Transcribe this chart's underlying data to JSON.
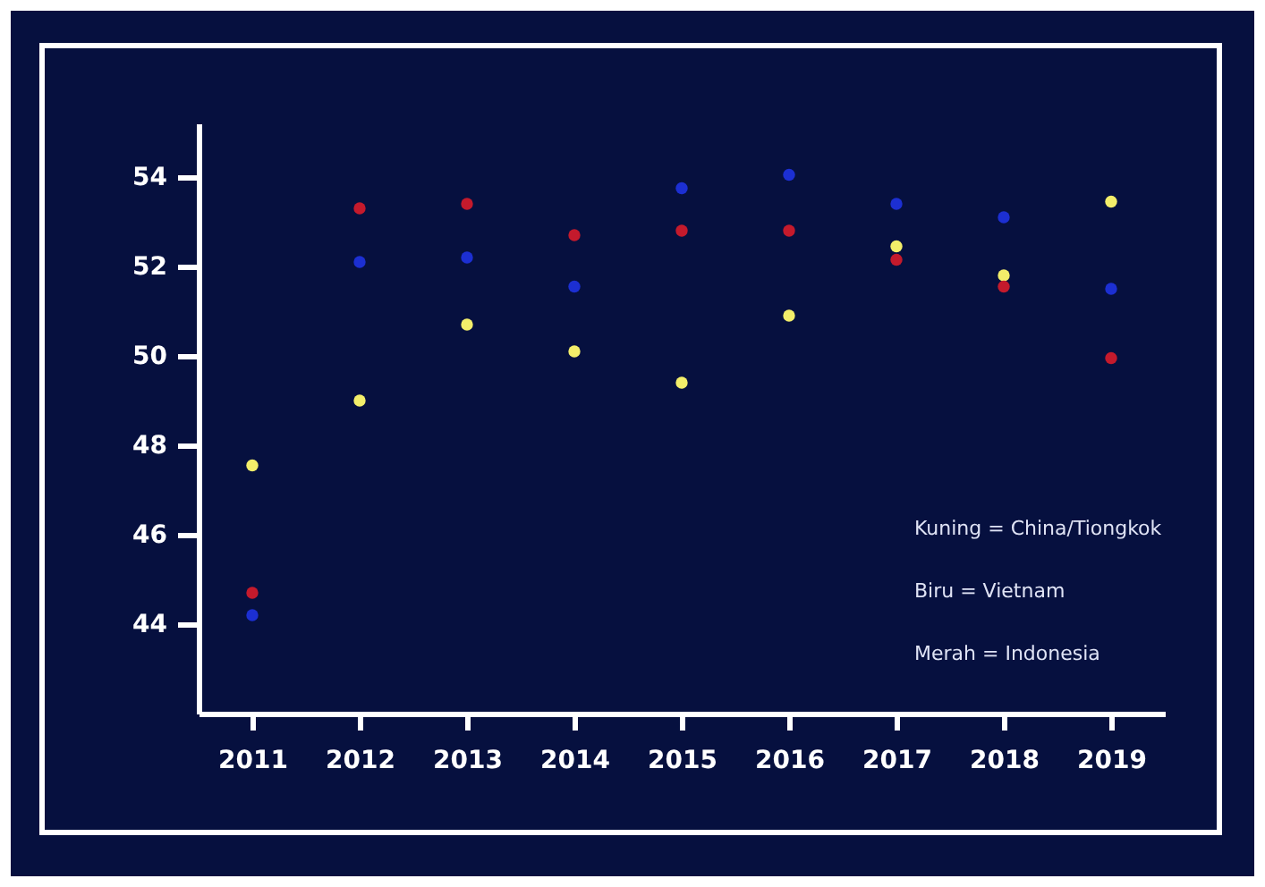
{
  "chart_data": {
    "type": "scatter",
    "categories": [
      "2011",
      "2012",
      "2013",
      "2014",
      "2015",
      "2016",
      "2017",
      "2018",
      "2019"
    ],
    "series": [
      {
        "color": "#f3ee6a",
        "values": [
          47.55,
          49.0,
          50.7,
          50.1,
          49.4,
          50.9,
          52.45,
          51.8,
          53.45
        ]
      },
      {
        "color": "#1c2fd2",
        "values": [
          44.2,
          52.1,
          52.2,
          51.55,
          53.75,
          54.05,
          53.4,
          53.1,
          51.5
        ]
      },
      {
        "color": "#c41a2c",
        "values": [
          44.7,
          53.3,
          53.4,
          52.7,
          52.8,
          52.8,
          52.15,
          51.55,
          49.95
        ]
      }
    ],
    "ylim": [
      42,
      55.2
    ],
    "yticks": [
      44,
      46,
      48,
      50,
      52,
      54
    ],
    "grid": false,
    "marker": "circle",
    "annotations": [
      "Kuning = China/Tiongkok",
      "Biru = Vietnam",
      "Merah = Indonesia"
    ]
  }
}
